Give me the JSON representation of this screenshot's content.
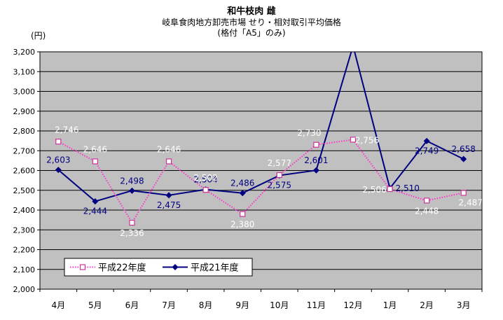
{
  "chart_data": {
    "type": "line",
    "title": "和牛枝肉 雌",
    "subtitle": "岐阜食肉地方卸売市場 せり・相対取引平均価格",
    "subtitle2": "(格付「A5」のみ)",
    "ylabel": "(円)",
    "xlabel": "",
    "categories": [
      "4月",
      "5月",
      "6月",
      "7月",
      "8月",
      "9月",
      "10月",
      "11月",
      "12月",
      "1月",
      "2月",
      "3月"
    ],
    "ylim": [
      2000,
      3200
    ],
    "yticks": [
      2000,
      2100,
      2200,
      2300,
      2400,
      2500,
      2600,
      2700,
      2800,
      2900,
      3000,
      3100,
      3200
    ],
    "ytick_labels": [
      "2,000",
      "2,100",
      "2,200",
      "2,300",
      "2,400",
      "2,500",
      "2,600",
      "2,700",
      "2,800",
      "2,900",
      "3,000",
      "3,100",
      "3,200"
    ],
    "grid": true,
    "legend_position": "bottom-left",
    "series": [
      {
        "name": "平成22年度",
        "color": "#ff33cc",
        "marker_color": "#cc3399",
        "line_style": "dotted",
        "marker": "square-open",
        "values": [
          2746,
          2646,
          2336,
          2646,
          2502,
          2380,
          2577,
          2730,
          2756,
          2506,
          2448,
          2487
        ],
        "labels": [
          "2,746",
          "2,646",
          "2,336",
          "2,646",
          "2,502",
          "2,380",
          "2,577",
          "2,730",
          "2,756",
          "2,506",
          "2,448",
          "2,487"
        ]
      },
      {
        "name": "平成21年度",
        "color": "#000080",
        "line_style": "solid",
        "marker": "diamond",
        "values": [
          2603,
          2444,
          2498,
          2475,
          2504,
          2486,
          2575,
          2601,
          3230,
          2510,
          2749,
          2658
        ],
        "labels": [
          "2,603",
          "2,444",
          "2,498",
          "2,475",
          "2,504",
          "2,486",
          "2,575",
          "2,601",
          "",
          "2,510",
          "2,749",
          "2,658"
        ]
      }
    ]
  }
}
